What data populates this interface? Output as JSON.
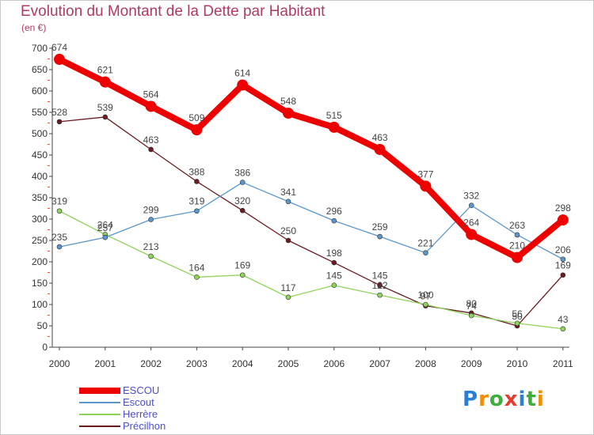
{
  "title": "Evolution du Montant de la Dette par Habitant",
  "subtitle": "(en €)",
  "logo_text": "Proxiti",
  "chart_data": {
    "type": "line",
    "title": "Evolution du Montant de la Dette par Habitant",
    "ylabel": "(en €)",
    "xlabel": "",
    "x": [
      "2000",
      "2001",
      "2002",
      "2003",
      "2004",
      "2005",
      "2006",
      "2007",
      "2008",
      "2009",
      "2010",
      "2011"
    ],
    "y_ticks": [
      0,
      50,
      100,
      150,
      200,
      250,
      300,
      350,
      400,
      450,
      500,
      550,
      600,
      650,
      700
    ],
    "ylim": [
      0,
      700
    ],
    "grid": false,
    "legend_position": "bottom-left",
    "series": [
      {
        "name": "ESCOU",
        "color": "#ee0000",
        "values": [
          674,
          621,
          564,
          509,
          614,
          548,
          515,
          463,
          377,
          264,
          210,
          298
        ],
        "labels": [
          "674",
          "621",
          "564",
          "509",
          "614",
          "548",
          "515",
          "463",
          "377",
          "264",
          "210",
          "298"
        ]
      },
      {
        "name": "Escout",
        "color": "#5b97cc",
        "values": [
          235,
          257,
          299,
          319,
          386,
          341,
          296,
          259,
          221,
          332,
          263,
          206
        ],
        "labels": [
          "235",
          "257",
          "299",
          "319",
          "386",
          "341",
          "296",
          "259",
          "221",
          "332",
          "263",
          "206"
        ]
      },
      {
        "name": "Herrère",
        "color": "#8fd45a",
        "values": [
          319,
          264,
          213,
          164,
          169,
          117,
          145,
          122,
          100,
          74,
          56,
          43
        ],
        "labels": [
          "319",
          "264",
          "213",
          "164",
          "169",
          "117",
          "145",
          "122",
          "100",
          "74",
          "56",
          "43"
        ]
      },
      {
        "name": "Précilhon",
        "color": "#6b1a1f",
        "values": [
          528,
          539,
          463,
          388,
          320,
          250,
          198,
          145,
          97,
          80,
          50,
          169
        ],
        "labels": [
          "528",
          "539",
          "463",
          "388",
          "320",
          "250",
          "198",
          "145",
          "97",
          "80",
          "50",
          "169"
        ]
      }
    ]
  }
}
